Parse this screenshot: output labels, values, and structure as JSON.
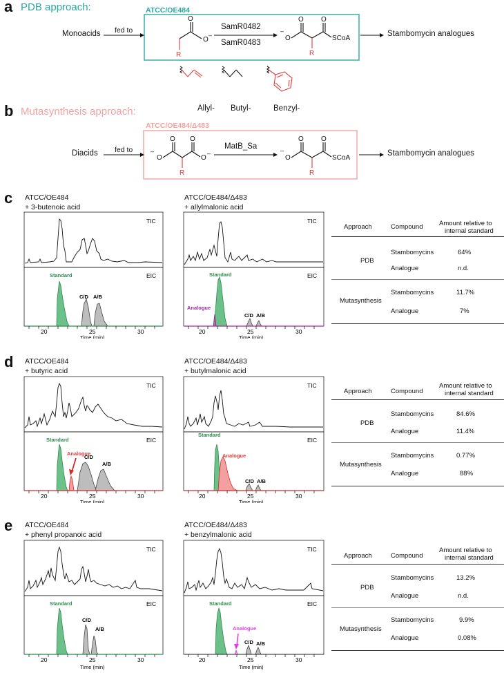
{
  "panels": {
    "a": {
      "letter": "a",
      "title": "PDB approach:",
      "title_color": "#2aa7a0",
      "strain": "ATCC/OE484",
      "feed": "Monoacids",
      "fed_to": "fed to",
      "enzyme1": "SamR0482",
      "enzyme2": "SamR0483",
      "product": "Stambomycin analogues",
      "substituents": [
        "Allyl-",
        "Butyl-",
        "Benzyl-"
      ],
      "sub_r": "R",
      "scoa": "SCoA",
      "minus": "–"
    },
    "b": {
      "letter": "b",
      "title": "Mutasynthesis approach:",
      "title_color": "#f0a3a0",
      "strain": "ATCC/OE484/Δ483",
      "feed": "Diacids",
      "fed_to": "fed to",
      "enzyme": "MatB_Sa",
      "product": "Stambomycin analogues",
      "sub_r": "R",
      "scoa": "SCoA",
      "minus": "–"
    }
  },
  "chrom_common": {
    "tic": "TIC",
    "eic": "EIC",
    "xlabel": "Time (min)",
    "ticks": [
      "20",
      "25",
      "30"
    ],
    "standard": "Standard",
    "cd": "C/D",
    "ab": "A/B"
  },
  "rows": [
    {
      "letter": "c",
      "left_caption": [
        "ATCC/OE484",
        "+ 3-butenoic acid"
      ],
      "right_caption": [
        "ATCC/OE484/Δ483",
        "+ allylmalonic acid"
      ],
      "analogue_right": "Analogue",
      "analogue_right_color": "#9a2a9a",
      "baseline_color": "#9a2a9a",
      "table": {
        "headers": [
          "Approach",
          "Compound",
          "Amount relative to",
          "internal standard"
        ],
        "rows": [
          {
            "approach": "PDB",
            "compound": "Stambomycins",
            "amount": "64%"
          },
          {
            "approach": "",
            "compound": "Analogue",
            "amount": "n.d."
          },
          {
            "approach": "Mutasynthesis",
            "compound": "Stambomycins",
            "amount": "11.7%"
          },
          {
            "approach": "",
            "compound": "Analogue",
            "amount": "7%"
          }
        ]
      }
    },
    {
      "letter": "d",
      "left_caption": [
        "ATCC/OE484",
        "+ butyric acid"
      ],
      "right_caption": [
        "ATCC/OE484/Δ483",
        "+ butylmalonic acid"
      ],
      "analogue_left": "Analogue",
      "analogue_right": "Analogue",
      "analogue_color": "#e53935",
      "table": {
        "headers": [
          "Approach",
          "Compound",
          "Amount relative to",
          "internal standard"
        ],
        "rows": [
          {
            "approach": "PDB",
            "compound": "Stambomycins",
            "amount": "84.6%"
          },
          {
            "approach": "",
            "compound": "Analogue",
            "amount": "11.4%"
          },
          {
            "approach": "Mutasynthesis",
            "compound": "Stambomycins",
            "amount": "0.77%"
          },
          {
            "approach": "",
            "compound": "Analogue",
            "amount": "88%"
          }
        ]
      }
    },
    {
      "letter": "e",
      "left_caption": [
        "ATCC/OE484",
        "+ phenyl propanoic acid"
      ],
      "right_caption": [
        "ATCC/OE484/Δ483",
        "+ benzylmalonic acid"
      ],
      "analogue_right": "Analogue",
      "analogue_color": "#e040e0",
      "table": {
        "headers": [
          "Approach",
          "Compound",
          "Amount relative to",
          "internal standard"
        ],
        "rows": [
          {
            "approach": "PDB",
            "compound": "Stambomycins",
            "amount": "13.2%"
          },
          {
            "approach": "",
            "compound": "Analogue",
            "amount": "n.d."
          },
          {
            "approach": "Mutasynthesis",
            "compound": "Stambomycins",
            "amount": "9.9%"
          },
          {
            "approach": "",
            "compound": "Analogue",
            "amount": "0.08%"
          }
        ]
      }
    }
  ]
}
